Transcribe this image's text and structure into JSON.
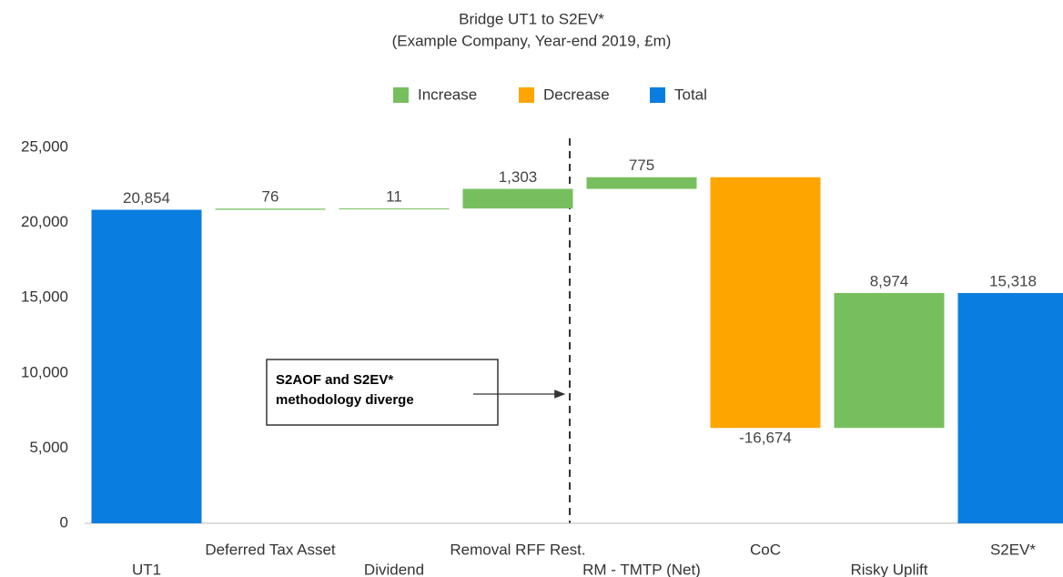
{
  "chart_data": {
    "type": "waterfall",
    "title": [
      "Bridge UT1 to S2EV*",
      "(Example Company, Year-end 2019, £m)"
    ],
    "categories": [
      "UT1",
      "Deferred Tax Asset",
      "Dividend",
      "Removal RFF Rest.",
      "RM - TMTP (Net)",
      "CoC",
      "Risky Uplift",
      "S2EV*"
    ],
    "series": [
      {
        "name": "Increase",
        "color": "#77bf5e",
        "values": [
          null,
          76,
          11,
          1303,
          775,
          null,
          8974,
          null
        ],
        "value_labels": [
          null,
          "76",
          "11",
          "1,303",
          "775",
          null,
          "8,974",
          null
        ]
      },
      {
        "name": "Decrease",
        "color": "#ffa500",
        "values": [
          null,
          null,
          null,
          null,
          null,
          -16674,
          null,
          null
        ],
        "value_labels": [
          null,
          null,
          null,
          null,
          null,
          "-16,674",
          null,
          null
        ]
      },
      {
        "name": "Total",
        "color": "#0a7ee0",
        "values": [
          20854,
          null,
          null,
          null,
          null,
          null,
          null,
          15318
        ],
        "value_labels": [
          "20,854",
          null,
          null,
          null,
          null,
          null,
          null,
          "15,318"
        ]
      }
    ],
    "ylim": [
      0,
      25000
    ],
    "yticks": [
      0,
      {
        "value": 5000,
        "label": "5,000"
      },
      {
        "value": 10000,
        "label": "10,000"
      },
      {
        "value": 15000,
        "label": "15,000"
      },
      {
        "value": 20000,
        "label": "20,000"
      },
      {
        "value": 25000,
        "label": "25,000"
      }
    ],
    "annotation": [
      "S2AOF and S2EV*",
      "methodology diverge"
    ]
  }
}
